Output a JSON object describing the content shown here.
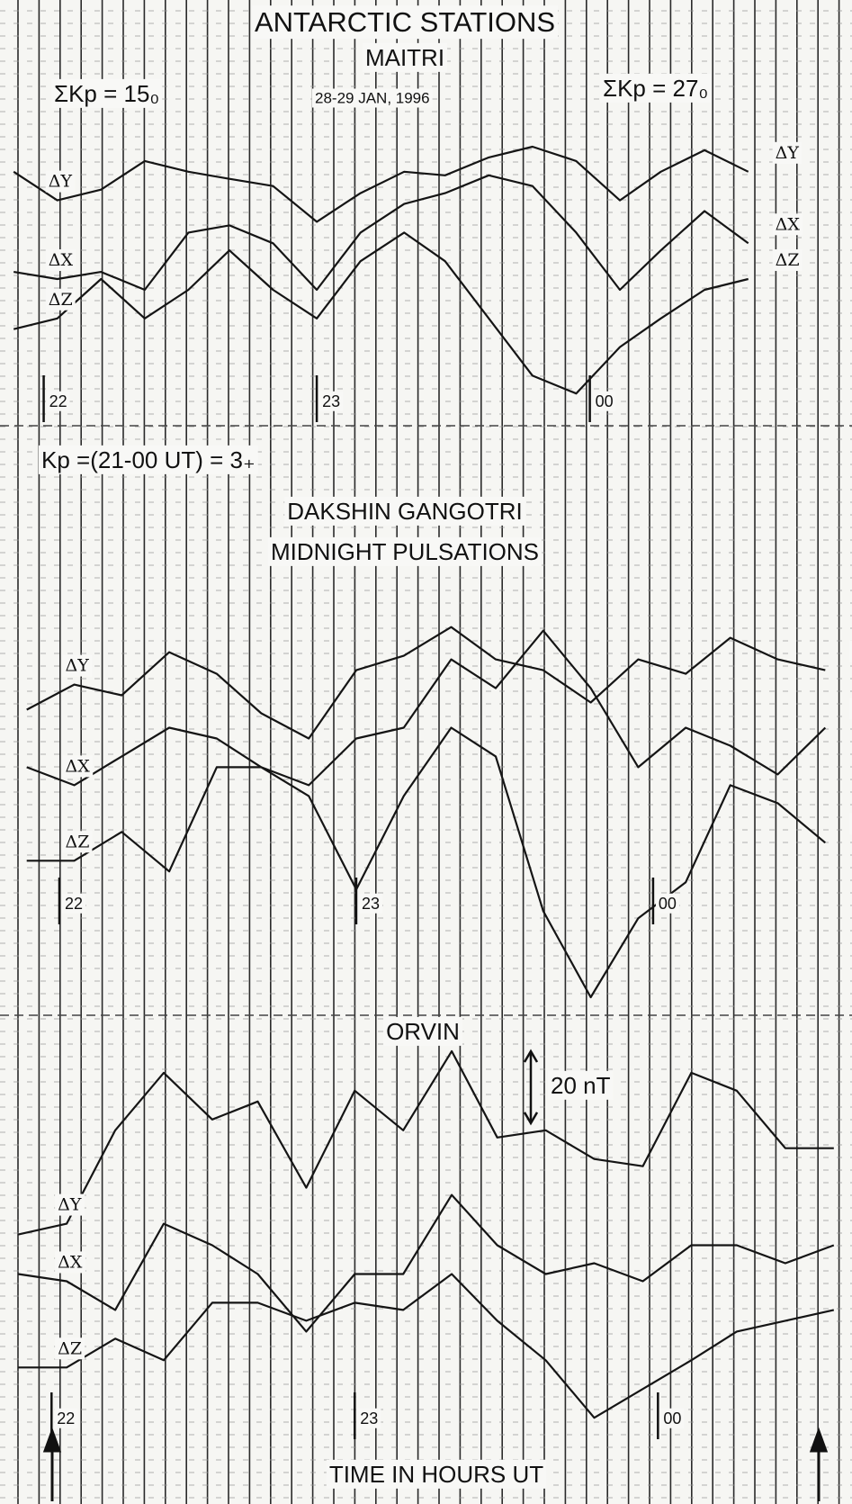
{
  "chart_data": [
    {
      "type": "line",
      "title": "ANTARCTIC STATIONS",
      "subtitle": "MAITRI",
      "annotations": [
        "ΣKp = 15₀",
        "28-29 JAN, 1996",
        "ΣKp = 27₀"
      ],
      "x": [
        21.89,
        22.05,
        22.21,
        22.37,
        22.53,
        22.68,
        22.84,
        23.0,
        23.16,
        23.32,
        23.47,
        23.63,
        23.79,
        23.95,
        24.11,
        24.26,
        24.42,
        24.58
      ],
      "xlim": [
        21.84,
        24.96
      ],
      "xticks": [
        22,
        23,
        {
          "value": 24,
          "label": "00"
        }
      ],
      "ylim": [
        0,
        119
      ],
      "series": [
        {
          "name": "ΔY",
          "color": "#151515",
          "values": [
            71,
            63,
            66,
            74,
            71,
            69,
            67,
            57,
            65,
            71,
            70,
            75,
            78,
            74,
            63,
            71,
            77,
            71
          ]
        },
        {
          "name": "ΔX",
          "color": "#151515",
          "values": [
            43,
            41,
            43,
            38,
            54,
            56,
            51,
            38,
            54,
            62,
            65,
            70,
            67,
            54,
            38,
            49,
            60,
            51
          ]
        },
        {
          "name": "ΔZ",
          "color": "#151515",
          "values": [
            27,
            30,
            41,
            30,
            38,
            49,
            38,
            30,
            46,
            54,
            46,
            30,
            14,
            9,
            22,
            30,
            38,
            41
          ]
        }
      ]
    },
    {
      "type": "line",
      "title": "DAKSHIN GANGOTRI",
      "subtitle": "MIDNIGHT PULSATIONS",
      "annotations": [
        "Kp =(21-00 UT) = 3₊"
      ],
      "x": [
        21.89,
        22.05,
        22.21,
        22.37,
        22.53,
        22.68,
        22.84,
        23.0,
        23.16,
        23.32,
        23.47,
        23.63,
        23.79,
        23.95,
        24.11,
        24.26,
        24.42,
        24.58
      ],
      "xlim": [
        21.8,
        24.67
      ],
      "xticks": [
        22,
        23,
        {
          "value": 24,
          "label": "00"
        }
      ],
      "ylim": [
        0,
        164
      ],
      "series": [
        {
          "name": "ΔY",
          "color": "#151515",
          "values": [
            85,
            92,
            89,
            101,
            95,
            84,
            77,
            96,
            100,
            108,
            99,
            96,
            87,
            99,
            95,
            105,
            99,
            96
          ]
        },
        {
          "name": "ΔX",
          "color": "#151515",
          "values": [
            69,
            64,
            72,
            80,
            77,
            69,
            64,
            77,
            80,
            99,
            91,
            107,
            91,
            69,
            80,
            75,
            67,
            80
          ]
        },
        {
          "name": "ΔZ",
          "color": "#151515",
          "values": [
            43,
            43,
            51,
            40,
            69,
            69,
            61,
            35,
            61,
            80,
            72,
            29,
            5,
            27,
            37,
            64,
            59,
            48
          ]
        }
      ]
    },
    {
      "type": "line",
      "title": "ORVIN",
      "x_label": "TIME IN HOURS UT",
      "scale_bar": {
        "value": 20,
        "label": "20 nT"
      },
      "x": [
        21.89,
        22.05,
        22.21,
        22.37,
        22.53,
        22.68,
        22.84,
        23.0,
        23.16,
        23.32,
        23.47,
        23.63,
        23.79,
        23.95,
        24.11,
        24.26,
        24.42,
        24.58
      ],
      "xlim": [
        21.83,
        24.64
      ],
      "xticks": [
        22,
        23,
        {
          "value": 24,
          "label": "00"
        }
      ],
      "ylim": [
        0,
        136
      ],
      "series": [
        {
          "name": "ΔY",
          "color": "#151515",
          "values": [
            75,
            78,
            104,
            120,
            107,
            112,
            88,
            115,
            104,
            126,
            102,
            104,
            96,
            94,
            120,
            115,
            99,
            99
          ]
        },
        {
          "name": "ΔX",
          "color": "#151515",
          "values": [
            64,
            62,
            54,
            78,
            72,
            64,
            48,
            64,
            64,
            86,
            72,
            64,
            67,
            62,
            72,
            72,
            67,
            72
          ]
        },
        {
          "name": "ΔZ",
          "color": "#151515",
          "values": [
            38,
            38,
            46,
            40,
            56,
            56,
            51,
            56,
            54,
            64,
            51,
            40,
            24,
            32,
            40,
            48,
            51,
            54
          ]
        }
      ]
    }
  ]
}
